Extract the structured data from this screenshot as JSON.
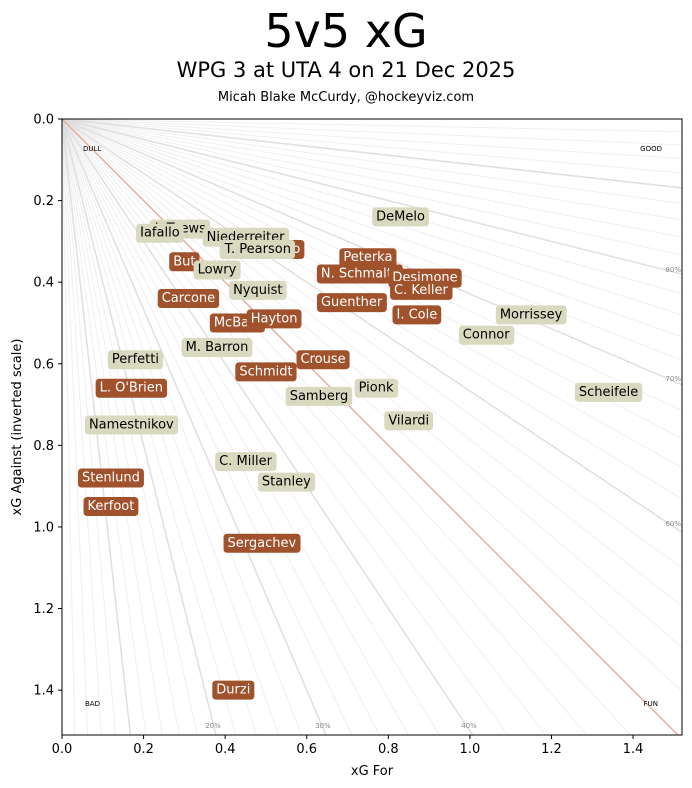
{
  "title": "5v5 xG",
  "subtitle": "WPG 3 at UTA 4 on 21 Dec 2025",
  "byline": "Micah Blake McCurdy, @hockeyviz.com",
  "colors": {
    "uta": "#a0522d",
    "wpg": "#d9d9bf",
    "diagonal": "#e8a89c",
    "ray": "#dcdcdc"
  },
  "chart_data": {
    "type": "scatter",
    "xlabel": "xG For",
    "ylabel": "xG Against (inverted scale)",
    "xlim": [
      0,
      1.52
    ],
    "ylim": [
      1.51,
      0
    ],
    "y_inverted": true,
    "x_ticks": [
      "0.0",
      "0.2",
      "0.4",
      "0.6",
      "0.8",
      "1.0",
      "1.2",
      "1.4"
    ],
    "y_ticks": [
      "0.0",
      "0.2",
      "0.4",
      "0.6",
      "0.8",
      "1.0",
      "1.2",
      "1.4"
    ],
    "corner_labels": {
      "top_left": "DULL",
      "top_right": "GOOD",
      "bottom_left": "BAD",
      "bottom_right": "FUN"
    },
    "percent_labels": [
      "20%",
      "30%",
      "40%",
      "60%",
      "70%",
      "80%"
    ],
    "series": [
      {
        "name": "UTA",
        "points": [
          {
            "player": "Marino",
            "x": 0.53,
            "y": 0.32
          },
          {
            "player": "But",
            "x": 0.3,
            "y": 0.35
          },
          {
            "player": "Peterka",
            "x": 0.75,
            "y": 0.34
          },
          {
            "player": "N. Schmaltz",
            "x": 0.73,
            "y": 0.38
          },
          {
            "player": "Desimone",
            "x": 0.89,
            "y": 0.39
          },
          {
            "player": "Carcone",
            "x": 0.31,
            "y": 0.44
          },
          {
            "player": "C. Keller",
            "x": 0.88,
            "y": 0.42
          },
          {
            "player": "Guenther",
            "x": 0.71,
            "y": 0.45
          },
          {
            "player": "I. Cole",
            "x": 0.87,
            "y": 0.48
          },
          {
            "player": "McBain",
            "x": 0.43,
            "y": 0.5
          },
          {
            "player": "Hayton",
            "x": 0.52,
            "y": 0.49
          },
          {
            "player": "Crouse",
            "x": 0.64,
            "y": 0.59
          },
          {
            "player": "Schmidt",
            "x": 0.5,
            "y": 0.62
          },
          {
            "player": "L. O'Brien",
            "x": 0.17,
            "y": 0.66
          },
          {
            "player": "Stenlund",
            "x": 0.12,
            "y": 0.88
          },
          {
            "player": "Kerfoot",
            "x": 0.12,
            "y": 0.95
          },
          {
            "player": "Sergachev",
            "x": 0.49,
            "y": 1.04
          },
          {
            "player": "Durzi",
            "x": 0.42,
            "y": 1.4
          }
        ]
      },
      {
        "name": "WPG",
        "points": [
          {
            "player": "J. Toews",
            "x": 0.29,
            "y": 0.27
          },
          {
            "player": "Iafallo",
            "x": 0.24,
            "y": 0.28
          },
          {
            "player": "Niederreiter",
            "x": 0.45,
            "y": 0.29
          },
          {
            "player": "DeMelo",
            "x": 0.83,
            "y": 0.24
          },
          {
            "player": "T. Pearson",
            "x": 0.48,
            "y": 0.32
          },
          {
            "player": "Lowry",
            "x": 0.38,
            "y": 0.37
          },
          {
            "player": "Nyquist",
            "x": 0.48,
            "y": 0.42
          },
          {
            "player": "Morrissey",
            "x": 1.15,
            "y": 0.48
          },
          {
            "player": "Connor",
            "x": 1.04,
            "y": 0.53
          },
          {
            "player": "M. Barron",
            "x": 0.38,
            "y": 0.56
          },
          {
            "player": "Perfetti",
            "x": 0.18,
            "y": 0.59
          },
          {
            "player": "Pionk",
            "x": 0.77,
            "y": 0.66
          },
          {
            "player": "Samberg",
            "x": 0.63,
            "y": 0.68
          },
          {
            "player": "Scheifele",
            "x": 1.34,
            "y": 0.67
          },
          {
            "player": "Namestnikov",
            "x": 0.17,
            "y": 0.75
          },
          {
            "player": "Vilardi",
            "x": 0.85,
            "y": 0.74
          },
          {
            "player": "C. Miller",
            "x": 0.45,
            "y": 0.84
          },
          {
            "player": "Stanley",
            "x": 0.55,
            "y": 0.89
          }
        ]
      }
    ]
  }
}
